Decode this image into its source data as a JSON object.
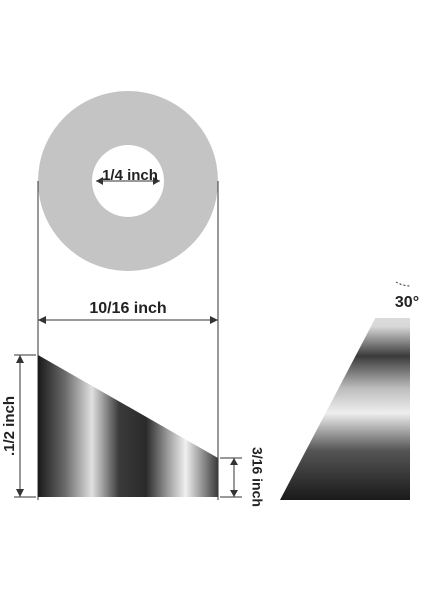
{
  "labels": {
    "inner_diameter": "1/4 inch",
    "outer_diameter": "10/16 inch",
    "height": ".1/2 inch",
    "short_height": "3/16 inch",
    "angle": "30°"
  }
}
